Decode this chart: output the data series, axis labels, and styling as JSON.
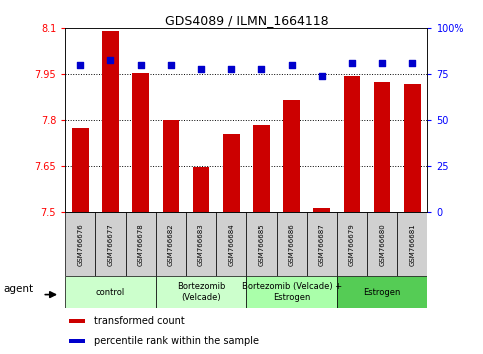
{
  "title": "GDS4089 / ILMN_1664118",
  "samples": [
    "GSM766676",
    "GSM766677",
    "GSM766678",
    "GSM766682",
    "GSM766683",
    "GSM766684",
    "GSM766685",
    "GSM766686",
    "GSM766687",
    "GSM766679",
    "GSM766680",
    "GSM766681"
  ],
  "bar_values": [
    7.775,
    8.09,
    7.955,
    7.8,
    7.648,
    7.755,
    7.785,
    7.865,
    7.515,
    7.945,
    7.925,
    7.92
  ],
  "percentile_values": [
    80,
    83,
    80,
    80,
    78,
    78,
    78,
    80,
    74,
    81,
    81,
    81
  ],
  "bar_color": "#cc0000",
  "dot_color": "#0000cc",
  "ylim_left": [
    7.5,
    8.1
  ],
  "ylim_right": [
    0,
    100
  ],
  "yticks_left": [
    7.5,
    7.65,
    7.8,
    7.95,
    8.1
  ],
  "yticks_left_labels": [
    "7.5",
    "7.65",
    "7.8",
    "7.95",
    "8.1"
  ],
  "yticks_right": [
    0,
    25,
    50,
    75,
    100
  ],
  "yticks_right_labels": [
    "0",
    "25",
    "50",
    "75",
    "100%"
  ],
  "groups": [
    {
      "label": "control",
      "start": 0,
      "end": 3,
      "color": "#ccffcc"
    },
    {
      "label": "Bortezomib\n(Velcade)",
      "start": 3,
      "end": 6,
      "color": "#ccffcc"
    },
    {
      "label": "Bortezomib (Velcade) +\nEstrogen",
      "start": 6,
      "end": 9,
      "color": "#aaffaa"
    },
    {
      "label": "Estrogen",
      "start": 9,
      "end": 12,
      "color": "#55cc55"
    }
  ],
  "legend_items": [
    {
      "color": "#cc0000",
      "label": "transformed count"
    },
    {
      "color": "#0000cc",
      "label": "percentile rank within the sample"
    }
  ],
  "agent_label": "agent",
  "dotted_line_values": [
    7.65,
    7.8,
    7.95
  ],
  "background_color": "#ffffff",
  "sample_box_color": "#d0d0d0",
  "bar_width": 0.55
}
